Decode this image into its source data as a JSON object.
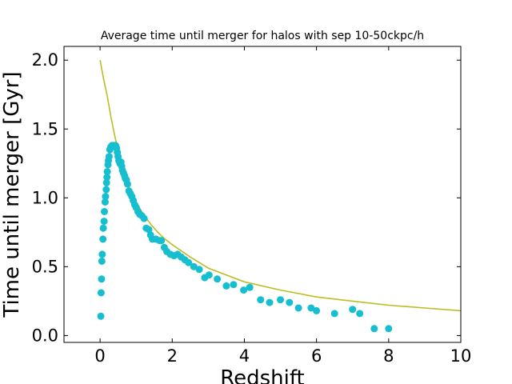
{
  "chart_data": {
    "type": "scatter",
    "title": "Average time until merger for halos with sep 10-50ckpc/h",
    "xlabel": "Redshift",
    "ylabel": "Time until merger [Gyr]",
    "xlim": [
      -1,
      10
    ],
    "ylim": [
      -0.05,
      2.1
    ],
    "x_ticks": [
      0,
      2,
      4,
      6,
      8,
      10
    ],
    "x_tick_labels": [
      "0",
      "2",
      "4",
      "6",
      "8",
      "10"
    ],
    "y_ticks": [
      0.0,
      0.5,
      1.0,
      1.5,
      2.0
    ],
    "y_tick_labels": [
      "0.0",
      "0.5",
      "1.0",
      "1.5",
      "2.0"
    ],
    "grid": false,
    "colors": {
      "points": "#17becf",
      "curve": "#bcbd22"
    },
    "series": [
      {
        "type": "scatter",
        "points": [
          [
            0.02,
            0.14
          ],
          [
            0.03,
            0.31
          ],
          [
            0.04,
            0.41
          ],
          [
            0.05,
            0.54
          ],
          [
            0.06,
            0.59
          ],
          [
            0.08,
            0.7
          ],
          [
            0.09,
            0.78
          ],
          [
            0.11,
            0.83
          ],
          [
            0.12,
            0.9
          ],
          [
            0.14,
            0.97
          ],
          [
            0.15,
            1.01
          ],
          [
            0.17,
            1.06
          ],
          [
            0.18,
            1.11
          ],
          [
            0.19,
            1.15
          ],
          [
            0.2,
            1.19
          ],
          [
            0.22,
            1.24
          ],
          [
            0.23,
            1.27
          ],
          [
            0.25,
            1.3
          ],
          [
            0.27,
            1.35
          ],
          [
            0.3,
            1.37
          ],
          [
            0.33,
            1.38
          ],
          [
            0.36,
            1.38
          ],
          [
            0.4,
            1.38
          ],
          [
            0.43,
            1.38
          ],
          [
            0.46,
            1.36
          ],
          [
            0.48,
            1.33
          ],
          [
            0.5,
            1.3
          ],
          [
            0.52,
            1.27
          ],
          [
            0.55,
            1.25
          ],
          [
            0.58,
            1.26
          ],
          [
            0.6,
            1.23
          ],
          [
            0.62,
            1.2
          ],
          [
            0.65,
            1.18
          ],
          [
            0.68,
            1.16
          ],
          [
            0.7,
            1.14
          ],
          [
            0.73,
            1.13
          ],
          [
            0.76,
            1.1
          ],
          [
            0.8,
            1.05
          ],
          [
            0.84,
            1.03
          ],
          [
            0.88,
            1.01
          ],
          [
            0.92,
            0.98
          ],
          [
            0.96,
            0.95
          ],
          [
            1.0,
            0.93
          ],
          [
            1.05,
            0.9
          ],
          [
            1.1,
            0.88
          ],
          [
            1.16,
            0.87
          ],
          [
            1.22,
            0.85
          ],
          [
            1.28,
            0.78
          ],
          [
            1.35,
            0.77
          ],
          [
            1.4,
            0.73
          ],
          [
            1.45,
            0.7
          ],
          [
            1.55,
            0.7
          ],
          [
            1.65,
            0.69
          ],
          [
            1.7,
            0.69
          ],
          [
            1.78,
            0.64
          ],
          [
            1.85,
            0.61
          ],
          [
            1.95,
            0.59
          ],
          [
            2.05,
            0.58
          ],
          [
            2.15,
            0.59
          ],
          [
            2.25,
            0.57
          ],
          [
            2.35,
            0.55
          ],
          [
            2.45,
            0.53
          ],
          [
            2.6,
            0.5
          ],
          [
            2.75,
            0.48
          ],
          [
            2.9,
            0.42
          ],
          [
            3.02,
            0.44
          ],
          [
            3.25,
            0.41
          ],
          [
            3.5,
            0.36
          ],
          [
            3.7,
            0.37
          ],
          [
            3.98,
            0.33
          ],
          [
            4.15,
            0.35
          ],
          [
            4.45,
            0.26
          ],
          [
            4.7,
            0.24
          ],
          [
            5.0,
            0.26
          ],
          [
            5.25,
            0.24
          ],
          [
            5.5,
            0.2
          ],
          [
            5.85,
            0.2
          ],
          [
            6.0,
            0.18
          ],
          [
            6.5,
            0.16
          ],
          [
            7.0,
            0.19
          ],
          [
            7.2,
            0.16
          ],
          [
            7.6,
            0.05
          ],
          [
            8.0,
            0.05
          ]
        ]
      },
      {
        "type": "line",
        "points": [
          [
            0.0,
            2.0
          ],
          [
            0.1,
            1.86
          ],
          [
            0.2,
            1.74
          ],
          [
            0.3,
            1.59
          ],
          [
            0.4,
            1.46
          ],
          [
            0.5,
            1.34
          ],
          [
            0.6,
            1.24
          ],
          [
            0.7,
            1.15
          ],
          [
            0.8,
            1.08
          ],
          [
            1.0,
            0.97
          ],
          [
            1.2,
            0.88
          ],
          [
            1.4,
            0.81
          ],
          [
            1.6,
            0.75
          ],
          [
            1.8,
            0.7
          ],
          [
            2.0,
            0.66
          ],
          [
            2.5,
            0.57
          ],
          [
            3.0,
            0.49
          ],
          [
            3.5,
            0.44
          ],
          [
            4.0,
            0.39
          ],
          [
            5.0,
            0.33
          ],
          [
            6.0,
            0.28
          ],
          [
            7.0,
            0.25
          ],
          [
            8.0,
            0.22
          ],
          [
            9.0,
            0.2
          ],
          [
            10.0,
            0.18
          ]
        ]
      }
    ]
  }
}
